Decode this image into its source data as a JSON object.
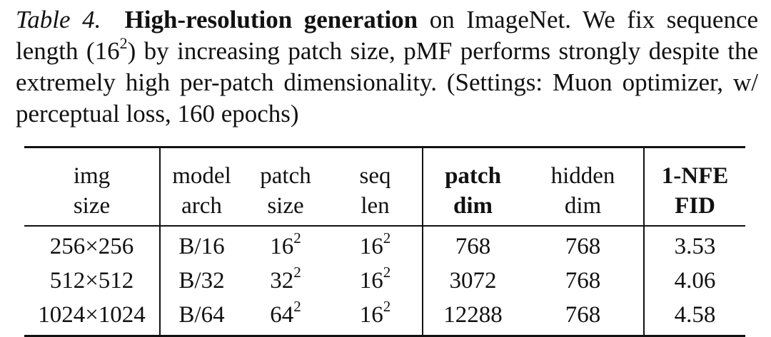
{
  "caption": {
    "label": "Table 4.",
    "title": "High-resolution generation",
    "text_part1": " on ImageNet.  We fix sequence length (16",
    "text_sup": "2",
    "text_part2": ") by increasing patch size, pMF performs strongly despite the extremely high per-patch dimensionality. (Settings: Muon optimizer, w/ perceptual loss, 160 epochs)"
  },
  "table": {
    "header_row1": [
      "img",
      "model",
      "patch",
      "seq",
      "patch",
      "hidden",
      "1-NFE"
    ],
    "header_row2": [
      "size",
      "arch",
      "size",
      "len",
      "dim",
      "dim",
      "FID"
    ],
    "rows": [
      {
        "img_size": "256×256",
        "model_arch": "B/16",
        "patch_size_base": "16",
        "patch_size_exp": "2",
        "seq_len_base": "16",
        "seq_len_exp": "2",
        "patch_dim": "768",
        "hidden_dim": "768",
        "fid": "3.53"
      },
      {
        "img_size": "512×512",
        "model_arch": "B/32",
        "patch_size_base": "32",
        "patch_size_exp": "2",
        "seq_len_base": "16",
        "seq_len_exp": "2",
        "patch_dim": "3072",
        "hidden_dim": "768",
        "fid": "4.06"
      },
      {
        "img_size": "1024×1024",
        "model_arch": "B/64",
        "patch_size_base": "64",
        "patch_size_exp": "2",
        "seq_len_base": "16",
        "seq_len_exp": "2",
        "patch_dim": "12288",
        "hidden_dim": "768",
        "fid": "4.58"
      }
    ]
  }
}
